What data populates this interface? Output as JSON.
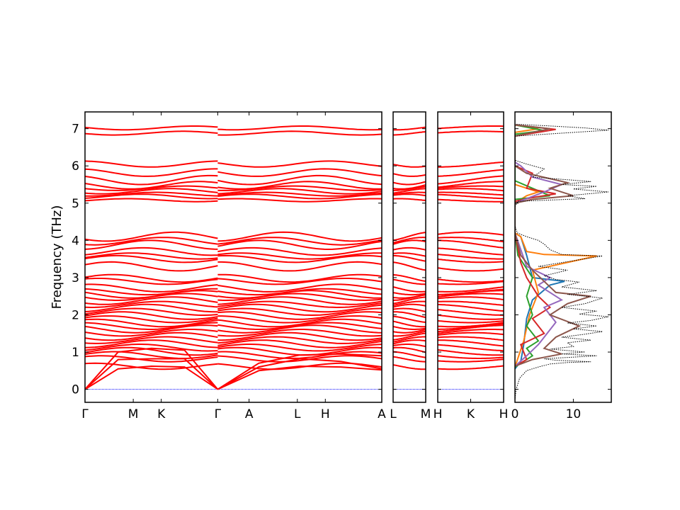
{
  "chart_data": {
    "type": "line",
    "title": "",
    "ylabel": "Frequency (THz)",
    "ylim": [
      -0.35,
      7.45
    ],
    "y_ticks": [
      0,
      1,
      2,
      3,
      4,
      5,
      6,
      7
    ],
    "band_color": "#ff0000",
    "zero_line_color": "#0000ff",
    "panels": [
      {
        "id": "path1",
        "x_tick_labels": [
          "Γ",
          "M",
          "K",
          "Γ",
          "A",
          "L",
          "H",
          "A"
        ],
        "x_ticks": [
          0,
          1,
          1.58,
          2.75,
          3.4,
          4.4,
          4.98,
          6.15
        ],
        "xlim": [
          0,
          6.15
        ],
        "gap_after_gamma": true
      },
      {
        "id": "path2",
        "x_tick_labels": [
          "L",
          "M"
        ],
        "x_ticks": [
          0,
          1
        ],
        "xlim": [
          0,
          1
        ]
      },
      {
        "id": "path3",
        "x_tick_labels": [
          "H",
          "K",
          "H"
        ],
        "x_ticks": [
          0,
          0.5,
          1
        ],
        "xlim": [
          0,
          1
        ]
      }
    ],
    "band_levels": [
      {
        "f": 7.02,
        "a": 0.05
      },
      {
        "f": 6.88,
        "a": 0.05
      },
      {
        "f": 6.05,
        "a": 0.08
      },
      {
        "f": 5.82,
        "a": 0.1
      },
      {
        "f": 5.62,
        "a": 0.12
      },
      {
        "f": 5.48,
        "a": 0.1
      },
      {
        "f": 5.4,
        "a": 0.06
      },
      {
        "f": 5.32,
        "a": 0.07
      },
      {
        "f": 5.24,
        "a": 0.05
      },
      {
        "f": 5.18,
        "a": 0.06
      },
      {
        "f": 5.08,
        "a": 0.04
      },
      {
        "f": 4.1,
        "a": 0.12
      },
      {
        "f": 3.98,
        "a": 0.1
      },
      {
        "f": 3.88,
        "a": 0.12
      },
      {
        "f": 3.7,
        "a": 0.1
      },
      {
        "f": 3.58,
        "a": 0.08
      },
      {
        "f": 3.5,
        "a": 0.09
      },
      {
        "f": 3.3,
        "a": 0.12
      },
      {
        "f": 2.98,
        "a": 0.1
      },
      {
        "f": 2.9,
        "a": 0.08
      },
      {
        "f": 2.72,
        "a": 0.1
      },
      {
        "f": 2.62,
        "a": 0.08
      },
      {
        "f": 2.55,
        "a": 0.1
      },
      {
        "f": 2.48,
        "a": 0.09
      },
      {
        "f": 2.38,
        "a": 0.1
      },
      {
        "f": 2.28,
        "a": 0.08
      },
      {
        "f": 2.18,
        "a": 0.1
      },
      {
        "f": 2.08,
        "a": 0.09
      },
      {
        "f": 1.98,
        "a": 0.1
      },
      {
        "f": 1.88,
        "a": 0.09
      },
      {
        "f": 1.78,
        "a": 0.1
      },
      {
        "f": 1.7,
        "a": 0.09
      },
      {
        "f": 1.62,
        "a": 0.1
      },
      {
        "f": 1.52,
        "a": 0.09
      },
      {
        "f": 1.42,
        "a": 0.1
      },
      {
        "f": 1.32,
        "a": 0.09
      },
      {
        "f": 1.22,
        "a": 0.1
      },
      {
        "f": 1.12,
        "a": 0.09
      },
      {
        "f": 1.02,
        "a": 0.1
      },
      {
        "f": 0.92,
        "a": 0.09
      },
      {
        "f": 0.82,
        "a": 0.08
      },
      {
        "f": 0.62,
        "a": 0.08
      }
    ],
    "acoustic": [
      {
        "n": "acoustic-1",
        "gamma0": [
          0,
          0.8,
          0.82,
          0.82,
          0.0
        ],
        "gamma1": [
          0.0,
          0.6,
          0.82,
          0.75,
          0.55
        ]
      },
      {
        "n": "acoustic-2",
        "gamma0": [
          0,
          0.55,
          0.62,
          0.6,
          0.0
        ],
        "gamma1": [
          0.0,
          0.5,
          0.62,
          0.6,
          0.52
        ]
      },
      {
        "n": "acoustic-3",
        "gamma0": [
          0,
          1.0,
          1.1,
          1.05,
          0.0
        ],
        "gamma1": [
          0.0,
          0.7,
          0.92,
          0.95,
          0.9
        ]
      }
    ],
    "dos": {
      "xlabel": "",
      "x_tick_labels": [
        "0",
        "10"
      ],
      "x_ticks": [
        0,
        10
      ],
      "xlim": [
        0,
        16.5
      ],
      "total_color": "#000000",
      "total": [
        [
          0,
          -0.3
        ],
        [
          0.2,
          0.0
        ],
        [
          0.8,
          0.3
        ],
        [
          2,
          0.5
        ],
        [
          4,
          0.6
        ],
        [
          6,
          0.68
        ],
        [
          9,
          0.72
        ],
        [
          13,
          0.74
        ],
        [
          7,
          0.78
        ],
        [
          5,
          0.82
        ],
        [
          14,
          0.9
        ],
        [
          8,
          0.95
        ],
        [
          12,
          1.0
        ],
        [
          6,
          1.08
        ],
        [
          10,
          1.15
        ],
        [
          9,
          1.25
        ],
        [
          13,
          1.32
        ],
        [
          8,
          1.4
        ],
        [
          12,
          1.48
        ],
        [
          15,
          1.55
        ],
        [
          10,
          1.62
        ],
        [
          14,
          1.7
        ],
        [
          9,
          1.78
        ],
        [
          13,
          1.85
        ],
        [
          16,
          1.95
        ],
        [
          11,
          2.02
        ],
        [
          14,
          2.1
        ],
        [
          8,
          2.2
        ],
        [
          12,
          2.3
        ],
        [
          15,
          2.45
        ],
        [
          9,
          2.55
        ],
        [
          14,
          2.65
        ],
        [
          8,
          2.75
        ],
        [
          11,
          2.88
        ],
        [
          7,
          2.95
        ],
        [
          5,
          3.05
        ],
        [
          9,
          3.2
        ],
        [
          4,
          3.3
        ],
        [
          15,
          3.58
        ],
        [
          8,
          3.62
        ],
        [
          6,
          3.75
        ],
        [
          5,
          3.9
        ],
        [
          4,
          4.0
        ],
        [
          2,
          4.1
        ],
        [
          0.4,
          4.2
        ],
        [
          0,
          4.4
        ],
        [
          0,
          4.9
        ],
        [
          0.5,
          5.05
        ],
        [
          12,
          5.12
        ],
        [
          9,
          5.2
        ],
        [
          16,
          5.3
        ],
        [
          10,
          5.38
        ],
        [
          14,
          5.45
        ],
        [
          8,
          5.5
        ],
        [
          13,
          5.58
        ],
        [
          3,
          5.7
        ],
        [
          4,
          5.8
        ],
        [
          5,
          5.92
        ],
        [
          2,
          6.05
        ],
        [
          0,
          6.15
        ],
        [
          0,
          6.8
        ],
        [
          8,
          6.88
        ],
        [
          16,
          6.96
        ],
        [
          12,
          7.02
        ],
        [
          5,
          7.08
        ],
        [
          0,
          7.12
        ]
      ],
      "projections": [
        {
          "name": "proj-1",
          "color": "#1f77b4",
          "pts": [
            [
              0,
              0.55
            ],
            [
              1,
              0.75
            ],
            [
              1.5,
              1.2
            ],
            [
              2,
              1.9
            ],
            [
              3,
              2.4
            ],
            [
              6,
              2.8
            ],
            [
              8.5,
              2.9
            ],
            [
              3,
              3.0
            ],
            [
              2,
              3.6
            ],
            [
              1,
              4.1
            ],
            [
              0,
              4.2
            ]
          ]
        },
        {
          "name": "proj-2",
          "color": "#ff7f0e",
          "pts": [
            [
              0,
              0.6
            ],
            [
              1.5,
              1.3
            ],
            [
              2.5,
              2.0
            ],
            [
              4,
              2.6
            ],
            [
              3,
              3.2
            ],
            [
              14,
              3.58
            ],
            [
              5,
              3.62
            ],
            [
              2,
              3.7
            ],
            [
              1,
              4.1
            ],
            [
              0,
              4.2
            ],
            [
              0,
              5.0
            ],
            [
              2,
              5.2
            ],
            [
              4,
              5.3
            ],
            [
              0,
              5.5
            ],
            [
              0,
              6.9
            ],
            [
              4,
              7.0
            ],
            [
              0,
              7.1
            ]
          ]
        },
        {
          "name": "proj-3",
          "color": "#2ca02c",
          "pts": [
            [
              0,
              0.6
            ],
            [
              3,
              0.9
            ],
            [
              2,
              1.1
            ],
            [
              4,
              1.3
            ],
            [
              2,
              1.7
            ],
            [
              3,
              2.0
            ],
            [
              2,
              2.5
            ],
            [
              3,
              3.0
            ],
            [
              0.5,
              3.6
            ],
            [
              0,
              4.2
            ],
            [
              0,
              5.1
            ],
            [
              6,
              5.2
            ],
            [
              3,
              5.4
            ],
            [
              0,
              5.6
            ],
            [
              0,
              6.85
            ],
            [
              5,
              6.95
            ],
            [
              0,
              7.1
            ]
          ]
        },
        {
          "name": "proj-4",
          "color": "#d62728",
          "pts": [
            [
              0,
              0.62
            ],
            [
              2,
              0.8
            ],
            [
              1,
              1.2
            ],
            [
              5,
              1.5
            ],
            [
              3,
              1.9
            ],
            [
              6,
              2.2
            ],
            [
              4,
              2.5
            ],
            [
              2,
              3.0
            ],
            [
              1,
              3.4
            ],
            [
              0,
              4.2
            ],
            [
              0,
              5.05
            ],
            [
              3,
              5.15
            ],
            [
              7,
              5.25
            ],
            [
              2,
              5.4
            ],
            [
              3,
              5.8
            ],
            [
              0,
              6.0
            ],
            [
              0,
              6.8
            ],
            [
              7,
              6.98
            ],
            [
              0,
              7.1
            ]
          ]
        },
        {
          "name": "proj-5",
          "color": "#9467bd",
          "pts": [
            [
              0,
              0.62
            ],
            [
              2,
              0.9
            ],
            [
              4,
              1.2
            ],
            [
              7,
              1.8
            ],
            [
              5,
              2.2
            ],
            [
              8,
              2.4
            ],
            [
              4,
              2.8
            ],
            [
              6,
              3.0
            ],
            [
              2,
              3.3
            ],
            [
              0,
              4.2
            ],
            [
              0,
              5.0
            ],
            [
              5,
              5.3
            ],
            [
              8,
              5.5
            ],
            [
              3,
              5.7
            ],
            [
              1,
              6.0
            ],
            [
              0,
              6.1
            ]
          ]
        },
        {
          "name": "proj-6",
          "color": "#8c564b",
          "pts": [
            [
              0,
              0.62
            ],
            [
              3,
              0.8
            ],
            [
              8,
              0.95
            ],
            [
              5,
              1.1
            ],
            [
              7,
              1.4
            ],
            [
              11,
              1.7
            ],
            [
              6,
              2.0
            ],
            [
              9,
              2.3
            ],
            [
              13,
              2.5
            ],
            [
              7,
              2.6
            ],
            [
              5,
              2.9
            ],
            [
              3,
              3.2
            ],
            [
              1,
              3.6
            ],
            [
              0,
              4.2
            ],
            [
              0,
              5.0
            ],
            [
              3,
              5.1
            ],
            [
              10,
              5.2
            ],
            [
              6,
              5.4
            ],
            [
              9,
              5.55
            ],
            [
              2,
              5.8
            ],
            [
              0,
              6.0
            ],
            [
              0,
              6.8
            ],
            [
              3,
              6.9
            ],
            [
              6,
              7.0
            ],
            [
              0,
              7.1
            ]
          ]
        }
      ]
    }
  }
}
